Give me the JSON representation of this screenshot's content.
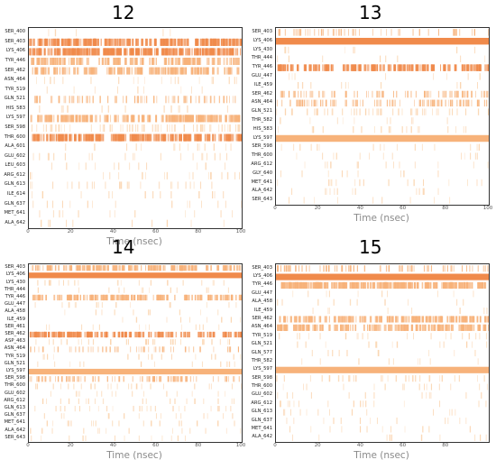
{
  "chart_data": [
    {
      "type": "heatmap",
      "title": "12",
      "xlabel": "Time (nsec)",
      "xlim": [
        0,
        100
      ],
      "xticks": [
        "0",
        "20",
        "40",
        "60",
        "80",
        "100"
      ],
      "colors": {
        "light": "#fbd5b0",
        "mid": "#f7b27a",
        "dark": "#f08a4b"
      },
      "rows": [
        {
          "residue": "SER_400",
          "occupancy": 0.02,
          "tone": "light"
        },
        {
          "residue": "SER_403",
          "occupancy": 0.75,
          "tone": "dark"
        },
        {
          "residue": "LYS_406",
          "occupancy": 0.85,
          "tone": "dark"
        },
        {
          "residue": "TYR_446",
          "occupancy": 0.45,
          "tone": "mid"
        },
        {
          "residue": "SER_462",
          "occupancy": 0.5,
          "tone": "mid"
        },
        {
          "residue": "ASN_464",
          "occupancy": 0.08,
          "tone": "light"
        },
        {
          "residue": "TYR_519",
          "occupancy": 0.04,
          "tone": "light"
        },
        {
          "residue": "GLN_521",
          "occupancy": 0.3,
          "tone": "mid"
        },
        {
          "residue": "HIS_583",
          "occupancy": 0.05,
          "tone": "light"
        },
        {
          "residue": "LYS_597",
          "occupancy": 0.6,
          "tone": "mid"
        },
        {
          "residue": "SER_598",
          "occupancy": 0.25,
          "tone": "light"
        },
        {
          "residue": "THR_600",
          "occupancy": 0.7,
          "tone": "dark"
        },
        {
          "residue": "ALA_601",
          "occupancy": 0.06,
          "tone": "light"
        },
        {
          "residue": "GLU_602",
          "occupancy": 0.08,
          "tone": "light"
        },
        {
          "residue": "LEU_603",
          "occupancy": 0.05,
          "tone": "light"
        },
        {
          "residue": "ARG_612",
          "occupancy": 0.07,
          "tone": "light"
        },
        {
          "residue": "GLN_613",
          "occupancy": 0.1,
          "tone": "light"
        },
        {
          "residue": "ILE_614",
          "occupancy": 0.05,
          "tone": "light"
        },
        {
          "residue": "GLN_637",
          "occupancy": 0.06,
          "tone": "light"
        },
        {
          "residue": "MET_641",
          "occupancy": 0.05,
          "tone": "light"
        },
        {
          "residue": "ALA_642",
          "occupancy": 0.04,
          "tone": "light"
        }
      ]
    },
    {
      "type": "heatmap",
      "title": "13",
      "xlabel": "Time (nsec)",
      "xlim": [
        0,
        100
      ],
      "xticks": [
        "0",
        "20",
        "40",
        "60",
        "80",
        "100"
      ],
      "colors": {
        "light": "#fbd5b0",
        "mid": "#f7b27a",
        "dark": "#f08a4b"
      },
      "rows": [
        {
          "residue": "SER_403",
          "occupancy": 0.2,
          "tone": "mid"
        },
        {
          "residue": "LYS_406",
          "occupancy": 0.97,
          "tone": "dark"
        },
        {
          "residue": "LYS_430",
          "occupancy": 0.03,
          "tone": "light"
        },
        {
          "residue": "THR_444",
          "occupancy": 0.03,
          "tone": "light"
        },
        {
          "residue": "TYR_446",
          "occupancy": 0.55,
          "tone": "dark"
        },
        {
          "residue": "GLU_447",
          "occupancy": 0.03,
          "tone": "light"
        },
        {
          "residue": "ILE_459",
          "occupancy": 0.04,
          "tone": "light"
        },
        {
          "residue": "SER_462",
          "occupancy": 0.35,
          "tone": "mid"
        },
        {
          "residue": "ASN_464",
          "occupancy": 0.4,
          "tone": "mid"
        },
        {
          "residue": "GLN_521",
          "occupancy": 0.2,
          "tone": "light"
        },
        {
          "residue": "THR_582",
          "occupancy": 0.04,
          "tone": "light"
        },
        {
          "residue": "HIS_583",
          "occupancy": 0.08,
          "tone": "light"
        },
        {
          "residue": "LYS_597",
          "occupancy": 0.98,
          "tone": "mid"
        },
        {
          "residue": "SER_598",
          "occupancy": 0.06,
          "tone": "light"
        },
        {
          "residue": "THR_600",
          "occupancy": 0.05,
          "tone": "light"
        },
        {
          "residue": "ARG_612",
          "occupancy": 0.05,
          "tone": "light"
        },
        {
          "residue": "GLY_640",
          "occupancy": 0.04,
          "tone": "light"
        },
        {
          "residue": "MET_641",
          "occupancy": 0.06,
          "tone": "light"
        },
        {
          "residue": "ALA_642",
          "occupancy": 0.05,
          "tone": "light"
        },
        {
          "residue": "SER_643",
          "occupancy": 0.04,
          "tone": "light"
        }
      ]
    },
    {
      "type": "heatmap",
      "title": "14",
      "xlabel": "Time (nsec)",
      "xlim": [
        0,
        100
      ],
      "xticks": [
        "0",
        "20",
        "40",
        "60",
        "80",
        "100"
      ],
      "colors": {
        "light": "#fbd5b0",
        "mid": "#f7b27a",
        "dark": "#f08a4b"
      },
      "rows": [
        {
          "residue": "SER_403",
          "occupancy": 0.45,
          "tone": "mid"
        },
        {
          "residue": "LYS_406",
          "occupancy": 0.95,
          "tone": "dark"
        },
        {
          "residue": "LYS_430",
          "occupancy": 0.08,
          "tone": "light"
        },
        {
          "residue": "THR_444",
          "occupancy": 0.05,
          "tone": "light"
        },
        {
          "residue": "TYR_446",
          "occupancy": 0.5,
          "tone": "mid"
        },
        {
          "residue": "GLU_447",
          "occupancy": 0.06,
          "tone": "light"
        },
        {
          "residue": "ALA_458",
          "occupancy": 0.04,
          "tone": "light"
        },
        {
          "residue": "ILE_459",
          "occupancy": 0.04,
          "tone": "light"
        },
        {
          "residue": "SER_461",
          "occupancy": 0.05,
          "tone": "light"
        },
        {
          "residue": "SER_462",
          "occupancy": 0.55,
          "tone": "dark"
        },
        {
          "residue": "ASP_463",
          "occupancy": 0.12,
          "tone": "light"
        },
        {
          "residue": "ASN_464",
          "occupancy": 0.2,
          "tone": "mid"
        },
        {
          "residue": "TYR_519",
          "occupancy": 0.06,
          "tone": "light"
        },
        {
          "residue": "GLN_521",
          "occupancy": 0.05,
          "tone": "light"
        },
        {
          "residue": "LYS_597",
          "occupancy": 0.97,
          "tone": "mid"
        },
        {
          "residue": "SER_598",
          "occupancy": 0.35,
          "tone": "mid"
        },
        {
          "residue": "THR_600",
          "occupancy": 0.1,
          "tone": "light"
        },
        {
          "residue": "GLU_602",
          "occupancy": 0.06,
          "tone": "light"
        },
        {
          "residue": "ARG_612",
          "occupancy": 0.08,
          "tone": "light"
        },
        {
          "residue": "GLN_613",
          "occupancy": 0.1,
          "tone": "light"
        },
        {
          "residue": "GLN_637",
          "occupancy": 0.06,
          "tone": "light"
        },
        {
          "residue": "MET_641",
          "occupancy": 0.07,
          "tone": "light"
        },
        {
          "residue": "ALA_642",
          "occupancy": 0.06,
          "tone": "light"
        },
        {
          "residue": "SER_643",
          "occupancy": 0.05,
          "tone": "light"
        }
      ]
    },
    {
      "type": "heatmap",
      "title": "15",
      "xlabel": "Time (nsec)",
      "xlim": [
        0,
        100
      ],
      "xticks": [
        "0",
        "20",
        "40",
        "60",
        "80"
      ],
      "colors": {
        "light": "#fbd5b0",
        "mid": "#f7b27a",
        "dark": "#f08a4b"
      },
      "rows": [
        {
          "residue": "SER_403",
          "occupancy": 0.3,
          "tone": "mid"
        },
        {
          "residue": "LYS_406",
          "occupancy": 0.97,
          "tone": "dark"
        },
        {
          "residue": "TYR_446",
          "occupancy": 0.9,
          "tone": "mid"
        },
        {
          "residue": "GLU_447",
          "occupancy": 0.04,
          "tone": "light"
        },
        {
          "residue": "ALA_458",
          "occupancy": 0.04,
          "tone": "light"
        },
        {
          "residue": "ILE_459",
          "occupancy": 0.03,
          "tone": "light"
        },
        {
          "residue": "SER_462",
          "occupancy": 0.5,
          "tone": "mid"
        },
        {
          "residue": "ASN_464",
          "occupancy": 0.55,
          "tone": "mid"
        },
        {
          "residue": "TYR_519",
          "occupancy": 0.08,
          "tone": "light"
        },
        {
          "residue": "GLN_521",
          "occupancy": 0.05,
          "tone": "light"
        },
        {
          "residue": "GLN_577",
          "occupancy": 0.04,
          "tone": "light"
        },
        {
          "residue": "THR_582",
          "occupancy": 0.04,
          "tone": "light"
        },
        {
          "residue": "LYS_597",
          "occupancy": 0.97,
          "tone": "mid"
        },
        {
          "residue": "SER_598",
          "occupancy": 0.12,
          "tone": "light"
        },
        {
          "residue": "THR_600",
          "occupancy": 0.06,
          "tone": "light"
        },
        {
          "residue": "GLU_602",
          "occupancy": 0.05,
          "tone": "light"
        },
        {
          "residue": "ARG_612",
          "occupancy": 0.06,
          "tone": "light"
        },
        {
          "residue": "GLN_613",
          "occupancy": 0.05,
          "tone": "light"
        },
        {
          "residue": "GLN_637",
          "occupancy": 0.05,
          "tone": "light"
        },
        {
          "residue": "MET_641",
          "occupancy": 0.05,
          "tone": "light"
        },
        {
          "residue": "ALA_642",
          "occupancy": 0.04,
          "tone": "light"
        }
      ]
    }
  ]
}
